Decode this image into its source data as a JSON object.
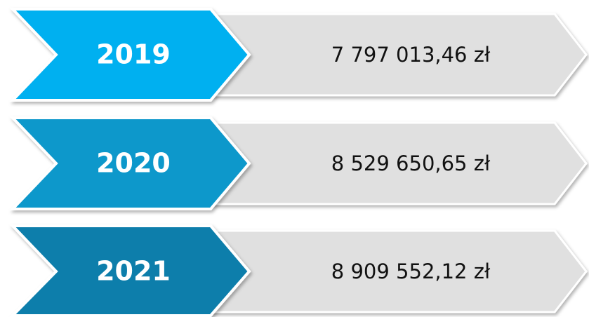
{
  "rows": [
    {
      "year": "2019",
      "amount": "7 797 013,46 zł"
    },
    {
      "year": "2020",
      "amount": "8 529 650,65 zł"
    },
    {
      "year": "2021",
      "amount": "8 909 552,12 zł"
    }
  ]
}
